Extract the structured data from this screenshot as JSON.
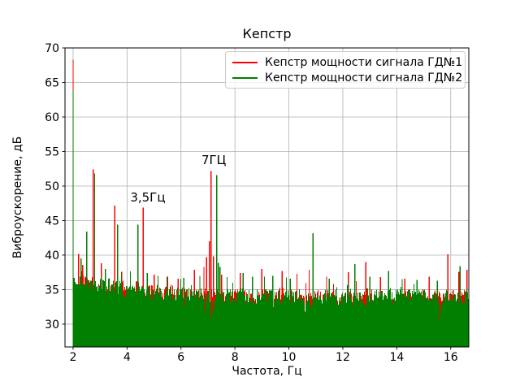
{
  "chart_data": {
    "type": "line",
    "title": "Кепстр",
    "xlabel": "Частота, Гц",
    "ylabel": "Виброускорение, дБ",
    "xlim": [
      1.7,
      16.67
    ],
    "ylim": [
      26.7,
      70
    ],
    "xticks": [
      2,
      4,
      6,
      8,
      10,
      12,
      14,
      16
    ],
    "yticks": [
      30,
      35,
      40,
      45,
      50,
      55,
      60,
      65,
      70
    ],
    "grid": true,
    "grid_color": "#b0b0b0",
    "background": "#ffffff",
    "legend": {
      "position": "upper right",
      "entries": [
        {
          "label": "Кепстр мощности сигнала ГД№1",
          "color": "#ff0000"
        },
        {
          "label": "Кепстр мощности сигнала ГД№2",
          "color": "#007f00"
        }
      ]
    },
    "annotations": [
      {
        "text": "3,5Гц",
        "x": 4.12,
        "y": 47.6
      },
      {
        "text": "7ГЦ",
        "x": 6.76,
        "y": 53.0
      }
    ],
    "series": [
      {
        "id": "gd1",
        "name": "Кепстр мощности сигнала ГД№1",
        "color": "#ff0000",
        "seed": 911045,
        "noise_floor": {
          "min": 26.7,
          "base": 33.7,
          "low_freq_boost": 2.5,
          "spread": 3.2
        },
        "peaks": [
          [
            2.0,
            68.3
          ],
          [
            2.2,
            40.2
          ],
          [
            2.35,
            38.6
          ],
          [
            2.75,
            52.4
          ],
          [
            3.05,
            38.8
          ],
          [
            3.55,
            47.2
          ],
          [
            3.8,
            37.6
          ],
          [
            4.6,
            46.9
          ],
          [
            5.0,
            37.2
          ],
          [
            5.5,
            36.9
          ],
          [
            5.9,
            36.6
          ],
          [
            6.5,
            37.9
          ],
          [
            6.85,
            38.3
          ],
          [
            6.95,
            39.7
          ],
          [
            7.12,
            52.2
          ],
          [
            7.05,
            42.0
          ],
          [
            7.2,
            39.8
          ],
          [
            7.5,
            37.2
          ],
          [
            8.2,
            37.4
          ],
          [
            9.0,
            38.0
          ],
          [
            9.75,
            37.7
          ],
          [
            10.3,
            37.3
          ],
          [
            10.75,
            37.9
          ],
          [
            11.4,
            36.9
          ],
          [
            12.2,
            37.5
          ],
          [
            12.85,
            39.0
          ],
          [
            13.4,
            36.8
          ],
          [
            14.3,
            36.6
          ],
          [
            15.2,
            36.9
          ],
          [
            15.9,
            40.1
          ],
          [
            16.3,
            37.6
          ],
          [
            16.6,
            37.9
          ]
        ]
      },
      {
        "id": "gd2",
        "name": "Кепстр мощности сигнала ГД№2",
        "color": "#007f00",
        "seed": 421337,
        "noise_floor": {
          "min": 26.7,
          "base": 33.9,
          "low_freq_boost": 2.6,
          "spread": 3.0
        },
        "peaks": [
          [
            2.0,
            63.8
          ],
          [
            2.3,
            39.5
          ],
          [
            2.5,
            43.4
          ],
          [
            2.8,
            51.8
          ],
          [
            3.2,
            38.0
          ],
          [
            3.65,
            44.4
          ],
          [
            4.4,
            44.4
          ],
          [
            4.75,
            37.4
          ],
          [
            5.15,
            37.0
          ],
          [
            6.1,
            36.7
          ],
          [
            6.7,
            37.0
          ],
          [
            7.33,
            51.6
          ],
          [
            7.38,
            38.9
          ],
          [
            7.45,
            38.3
          ],
          [
            8.3,
            37.4
          ],
          [
            8.65,
            36.9
          ],
          [
            9.4,
            37.0
          ],
          [
            10.05,
            36.6
          ],
          [
            10.9,
            43.2
          ],
          [
            11.5,
            36.6
          ],
          [
            12.45,
            38.7
          ],
          [
            13.0,
            36.9
          ],
          [
            13.7,
            37.7
          ],
          [
            14.2,
            36.5
          ],
          [
            14.75,
            36.4
          ],
          [
            15.5,
            36.3
          ],
          [
            16.35,
            38.4
          ]
        ]
      }
    ]
  }
}
